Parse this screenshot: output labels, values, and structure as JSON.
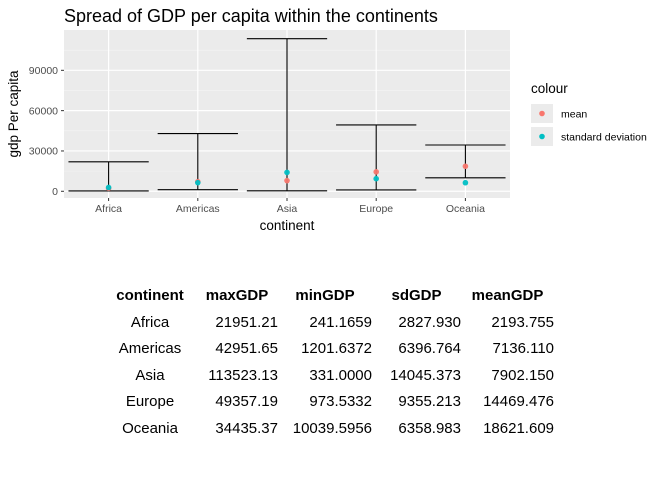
{
  "chart_data": {
    "type": "errorbar",
    "title": "Spread of GDP per capita within the continents",
    "xlabel": "continent",
    "ylabel": "gdp Per capita",
    "categories": [
      "Africa",
      "Americas",
      "Asia",
      "Europe",
      "Oceania"
    ],
    "ylim": [
      -5000,
      120000
    ],
    "yticks": [
      0,
      30000,
      60000,
      90000
    ],
    "ytick_labels": [
      "0",
      "30000",
      "60000",
      "90000"
    ],
    "errorbars": {
      "ymin": [
        241.1659,
        1201.6372,
        331.0,
        973.5332,
        10039.5956
      ],
      "ymax": [
        21951.21,
        42951.65,
        113523.13,
        49357.19,
        34435.37
      ]
    },
    "series": [
      {
        "name": "mean",
        "color": "#F8766D",
        "values": [
          2193.755,
          7136.11,
          7902.15,
          14469.476,
          18621.609
        ]
      },
      {
        "name": "standard deviation",
        "color": "#00BFC4",
        "values": [
          2827.93,
          6396.764,
          14045.373,
          9355.213,
          6358.983
        ]
      }
    ],
    "legend": {
      "title": "colour",
      "position": "right"
    },
    "grid": true
  },
  "table": {
    "columns": [
      "continent",
      "maxGDP",
      "minGDP",
      "sdGDP",
      "meanGDP"
    ],
    "rows": [
      [
        "Africa",
        "21951.21",
        "241.1659",
        "2827.930",
        "2193.755"
      ],
      [
        "Americas",
        "42951.65",
        "1201.6372",
        "6396.764",
        "7136.110"
      ],
      [
        "Asia",
        "113523.13",
        "331.0000",
        "14045.373",
        "7902.150"
      ],
      [
        "Europe",
        "49357.19",
        "973.5332",
        "9355.213",
        "14469.476"
      ],
      [
        "Oceania",
        "34435.37",
        "10039.5956",
        "6358.983",
        "18621.609"
      ]
    ]
  }
}
